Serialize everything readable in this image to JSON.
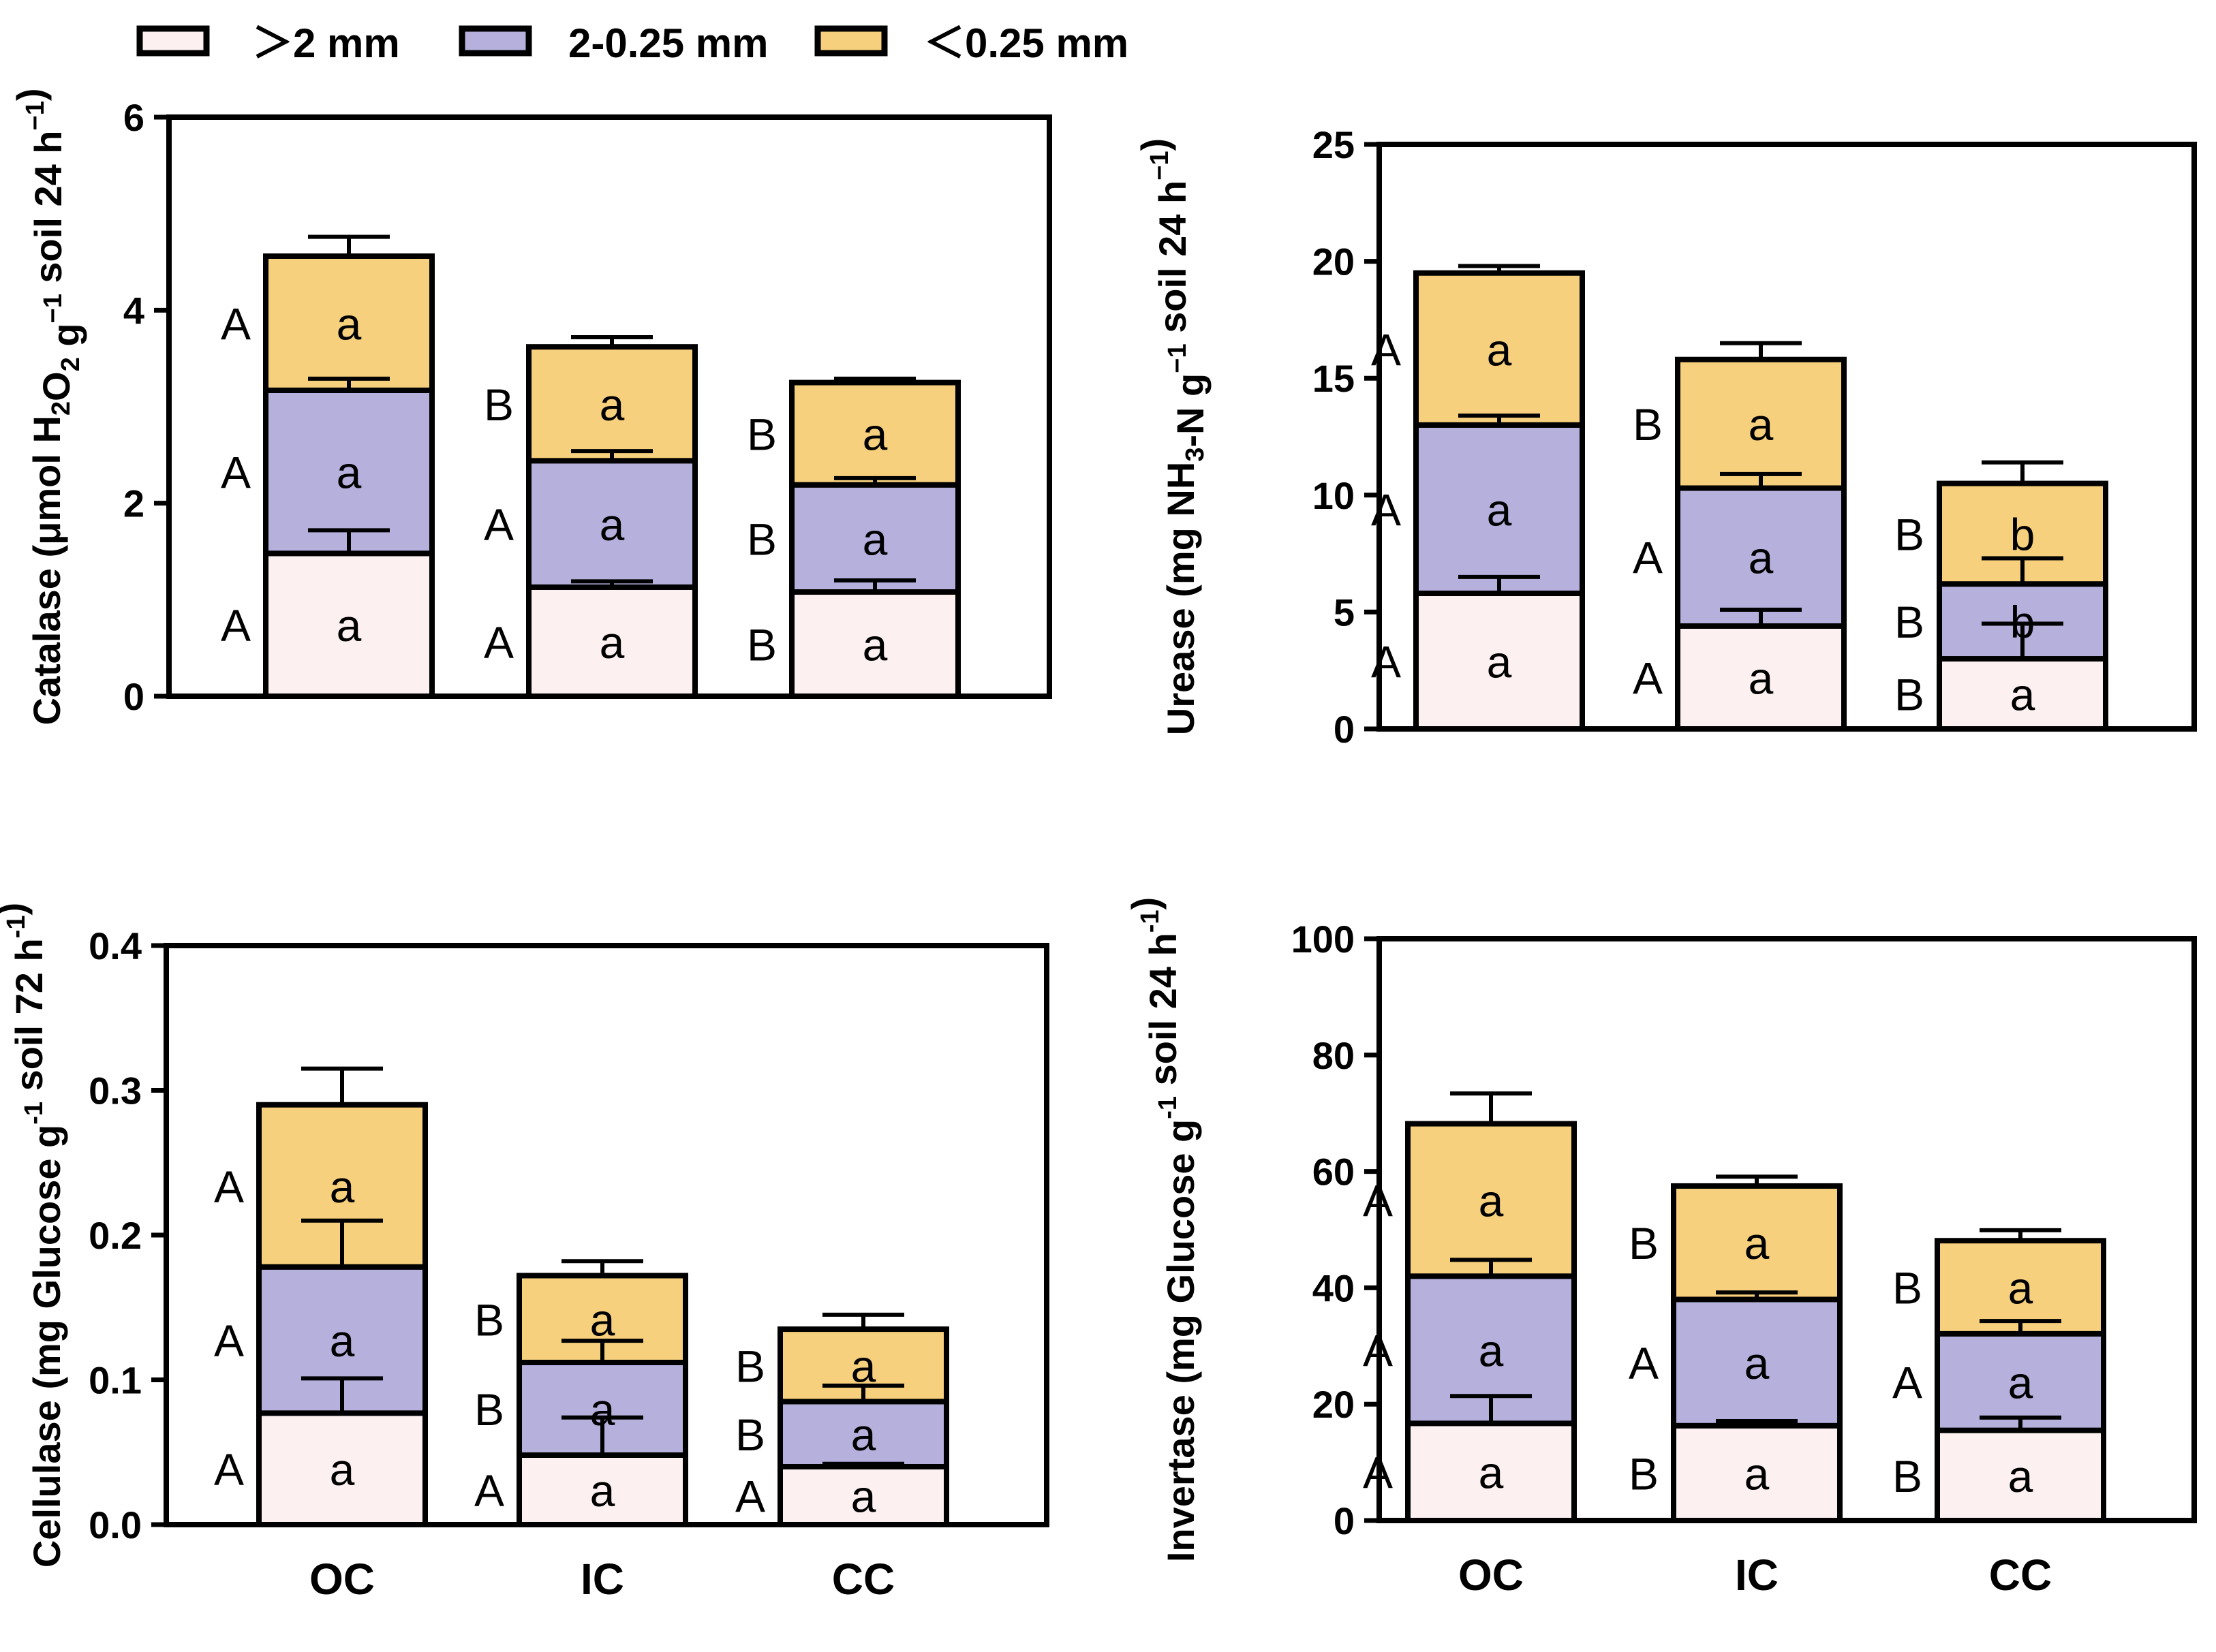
{
  "colors": {
    "seg_large": "#fcf0f0",
    "seg_mid": "#b6b0dd",
    "seg_small": "#f6d07c",
    "stroke": "#000000"
  },
  "legend": {
    "items": [
      {
        "label": "＞2 mm",
        "color": "#fcf0f0"
      },
      {
        "label": "2-0.25 mm",
        "color": "#b6b0dd"
      },
      {
        "label": "＜0.25 mm",
        "color": "#f6d07c"
      }
    ]
  },
  "chart_data": [
    {
      "type": "bar",
      "stacked": true,
      "ylabel_parts": [
        "Catalase (μmol H",
        "2",
        "O",
        "2",
        " g",
        "−1",
        " soil 24 h",
        "−1",
        ")"
      ],
      "ylim": [
        0,
        6
      ],
      "yticks": [
        0,
        2,
        4,
        6
      ],
      "categories": [
        "OC",
        "IC",
        "CC"
      ],
      "show_categories": false,
      "series": [
        {
          "values": [
            1.48,
            1.13,
            1.08
          ],
          "errors": [
            0.24,
            0.06,
            0.12
          ],
          "letters": [
            "a",
            "a",
            "a"
          ],
          "group_letters": [
            "A",
            "A",
            "B"
          ]
        },
        {
          "values": [
            1.69,
            1.31,
            1.11
          ],
          "errors": [
            0.12,
            0.1,
            0.07
          ],
          "letters": [
            "a",
            "a",
            "a"
          ],
          "group_letters": [
            "A",
            "A",
            "B"
          ]
        },
        {
          "values": [
            1.39,
            1.18,
            1.06
          ],
          "errors": [
            0.2,
            0.1,
            0.04
          ],
          "letters": [
            "a",
            "a",
            "a"
          ],
          "group_letters": [
            "A",
            "B",
            "B"
          ]
        }
      ]
    },
    {
      "type": "bar",
      "stacked": true,
      "ylabel_parts": [
        "Urease (mg NH",
        "3",
        "-N g",
        "−1",
        " soil 24 h",
        "−1",
        ")"
      ],
      "ylim": [
        0,
        25
      ],
      "yticks": [
        0,
        5,
        10,
        15,
        20,
        25
      ],
      "categories": [
        "OC",
        "IC",
        "CC"
      ],
      "show_categories": false,
      "series": [
        {
          "values": [
            5.8,
            4.4,
            3.0
          ],
          "errors": [
            0.7,
            0.7,
            1.5
          ],
          "letters": [
            "a",
            "a",
            "a"
          ],
          "group_letters": [
            "A",
            "A",
            "B"
          ]
        },
        {
          "values": [
            7.2,
            5.9,
            3.2
          ],
          "errors": [
            0.4,
            0.6,
            1.1
          ],
          "letters": [
            "a",
            "a",
            "b"
          ],
          "group_letters": [
            "A",
            "A",
            "B"
          ]
        },
        {
          "values": [
            6.5,
            5.5,
            4.3
          ],
          "errors": [
            0.3,
            0.7,
            0.9
          ],
          "letters": [
            "a",
            "a",
            "b"
          ],
          "group_letters": [
            "A",
            "B",
            "B"
          ]
        }
      ]
    },
    {
      "type": "bar",
      "stacked": true,
      "ylabel_parts": [
        "Cellulase (mg Glucose g",
        "-1",
        " soil  72 h",
        "-1",
        ")"
      ],
      "ylim": [
        0,
        0.4
      ],
      "yticks": [
        0.0,
        0.1,
        0.2,
        0.3,
        0.4
      ],
      "tick_decimals": 1,
      "categories": [
        "OC",
        "IC",
        "CC"
      ],
      "show_categories": true,
      "series": [
        {
          "values": [
            0.077,
            0.048,
            0.04
          ],
          "errors": [
            0.024,
            0.026,
            0.002
          ],
          "letters": [
            "a",
            "a",
            "a"
          ],
          "group_letters": [
            "A",
            "A",
            "A"
          ]
        },
        {
          "values": [
            0.101,
            0.064,
            0.045
          ],
          "errors": [
            0.032,
            0.015,
            0.011
          ],
          "letters": [
            "a",
            "a",
            "a"
          ],
          "group_letters": [
            "A",
            "B",
            "B"
          ]
        },
        {
          "values": [
            0.112,
            0.06,
            0.05
          ],
          "errors": [
            0.025,
            0.01,
            0.01
          ],
          "letters": [
            "a",
            "a",
            "a"
          ],
          "group_letters": [
            "A",
            "B",
            "B"
          ]
        }
      ]
    },
    {
      "type": "bar",
      "stacked": true,
      "ylabel_parts": [
        "Invertase (mg Glucose g",
        "-1",
        " soil 24 h",
        "-1",
        ")"
      ],
      "ylim": [
        0,
        100
      ],
      "yticks": [
        0,
        20,
        40,
        60,
        80,
        100
      ],
      "categories": [
        "OC",
        "IC",
        "CC"
      ],
      "show_categories": true,
      "series": [
        {
          "values": [
            16.7,
            16.3,
            15.5
          ],
          "errors": [
            4.7,
            0.8,
            2.2
          ],
          "letters": [
            "a",
            "a",
            "a"
          ],
          "group_letters": [
            "A",
            "B",
            "B"
          ]
        },
        {
          "values": [
            25.3,
            21.7,
            16.6
          ],
          "errors": [
            2.8,
            1.2,
            2.2
          ],
          "letters": [
            "a",
            "a",
            "a"
          ],
          "group_letters": [
            "A",
            "A",
            "A"
          ]
        },
        {
          "values": [
            26.2,
            19.5,
            16.0
          ],
          "errors": [
            5.2,
            1.6,
            1.8
          ],
          "letters": [
            "a",
            "a",
            "a"
          ],
          "group_letters": [
            "A",
            "B",
            "B"
          ]
        }
      ]
    }
  ]
}
